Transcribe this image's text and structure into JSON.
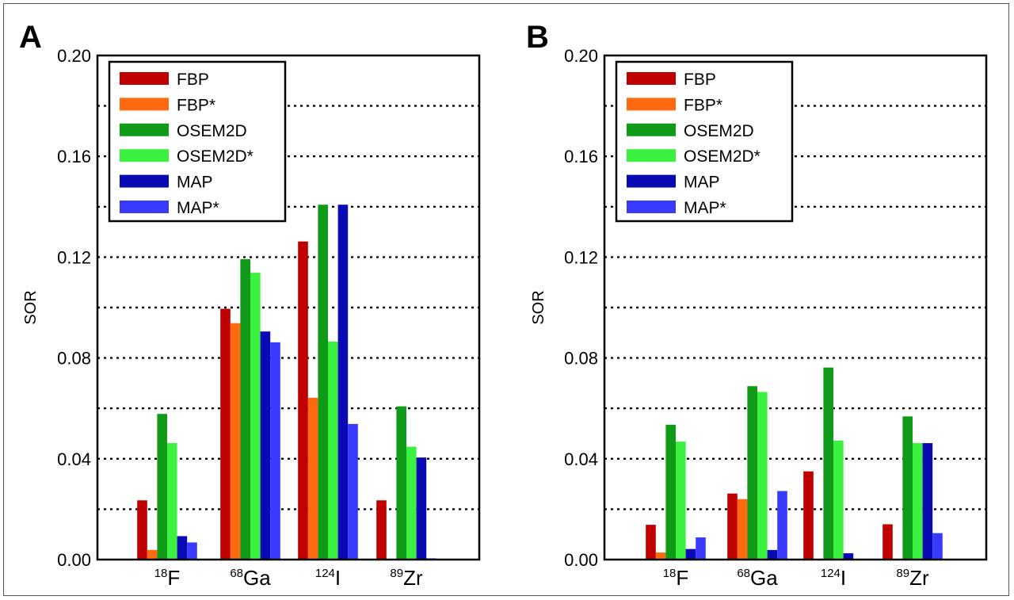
{
  "colors": {
    "FBP": "#c00000",
    "FBP*": "#ff6a10",
    "OSEM2D": "#0f9a18",
    "OSEM2D*": "#3cf040",
    "MAP": "#0a0ab4",
    "MAP*": "#3a3aff"
  },
  "chart_data": [
    {
      "panel": "A",
      "type": "bar",
      "ylabel": "SOR",
      "ylim": [
        0,
        0.2
      ],
      "yticks": [
        "0.00",
        "0.04",
        "0.08",
        "0.12",
        "0.16",
        "0.20"
      ],
      "grid": "dotted every 0.02 above 0",
      "legend": "top-left",
      "categories": [
        {
          "sup": "18",
          "base": "F"
        },
        {
          "sup": "68",
          "base": "Ga"
        },
        {
          "sup": "124",
          "base": "I"
        },
        {
          "sup": "89",
          "base": "Zr"
        }
      ],
      "series": [
        {
          "name": "FBP",
          "values": [
            0.0235,
            0.0995,
            0.1262,
            0.0235
          ]
        },
        {
          "name": "FBP*",
          "values": [
            0.0038,
            0.0938,
            0.0642,
            0.0
          ]
        },
        {
          "name": "OSEM2D",
          "values": [
            0.0578,
            0.1192,
            0.1408,
            0.0608
          ]
        },
        {
          "name": "OSEM2D*",
          "values": [
            0.0462,
            0.1138,
            0.0865,
            0.0448
          ]
        },
        {
          "name": "MAP",
          "values": [
            0.0093,
            0.0905,
            0.1408,
            0.0405
          ]
        },
        {
          "name": "MAP*",
          "values": [
            0.0068,
            0.0862,
            0.0538,
            0.0005
          ]
        }
      ]
    },
    {
      "panel": "B",
      "type": "bar",
      "ylabel": "SOR",
      "ylim": [
        0,
        0.2
      ],
      "yticks": [
        "0.00",
        "0.04",
        "0.08",
        "0.12",
        "0.16",
        "0.20"
      ],
      "grid": "dotted every 0.02 above 0",
      "legend": "top-left",
      "categories": [
        {
          "sup": "18",
          "base": "F"
        },
        {
          "sup": "68",
          "base": "Ga"
        },
        {
          "sup": "124",
          "base": "I"
        },
        {
          "sup": "89",
          "base": "Zr"
        }
      ],
      "series": [
        {
          "name": "FBP",
          "values": [
            0.0138,
            0.0262,
            0.035,
            0.014
          ]
        },
        {
          "name": "FBP*",
          "values": [
            0.0028,
            0.024,
            0.0,
            0.0
          ]
        },
        {
          "name": "OSEM2D",
          "values": [
            0.0535,
            0.0688,
            0.0762,
            0.0568
          ]
        },
        {
          "name": "OSEM2D*",
          "values": [
            0.0468,
            0.0665,
            0.0472,
            0.0462
          ]
        },
        {
          "name": "MAP",
          "values": [
            0.0042,
            0.0038,
            0.0025,
            0.0462
          ]
        },
        {
          "name": "MAP*",
          "values": [
            0.0088,
            0.0272,
            0.0,
            0.0105
          ]
        }
      ]
    }
  ]
}
